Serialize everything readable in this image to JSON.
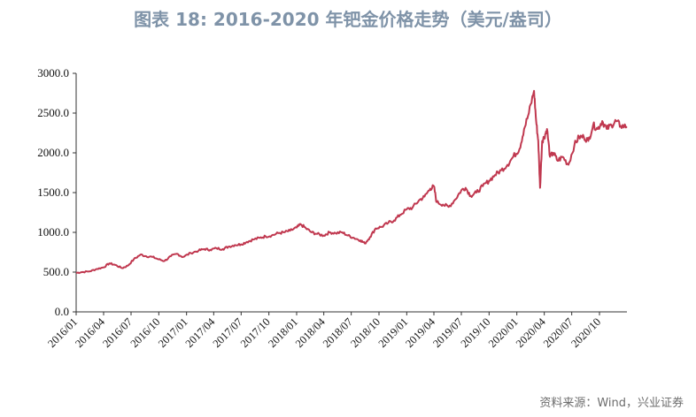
{
  "header": {
    "title": "图表 18: 2016-2020 年钯金价格走势（美元/盎司）"
  },
  "footer": {
    "source": "资料来源：Wind，兴业证券"
  },
  "chart_data": {
    "type": "line",
    "title": "图表 18: 2016-2020 年钯金价格走势（美元/盎司）",
    "xlabel": "",
    "ylabel": "",
    "ylim": [
      0,
      3000
    ],
    "y_ticks": [
      "0.0",
      "500.0",
      "1000.0",
      "1500.0",
      "2000.0",
      "2500.0",
      "3000.0"
    ],
    "x_ticks": [
      "2016/01",
      "2016/04",
      "2016/07",
      "2016/10",
      "2017/01",
      "2017/04",
      "2017/07",
      "2017/10",
      "2018/01",
      "2018/04",
      "2018/07",
      "2018/10",
      "2019/01",
      "2019/04",
      "2019/07",
      "2019/10",
      "2020/01",
      "2020/04",
      "2020/07",
      "2020/10"
    ],
    "grid": false,
    "line_color": "#c0384f",
    "series": [
      {
        "x": [
          "2016-01-01",
          "2016-01-20",
          "2016-02-15",
          "2016-03-10",
          "2016-04-01",
          "2016-04-20",
          "2016-05-10",
          "2016-06-01",
          "2016-06-20",
          "2016-07-10",
          "2016-08-01",
          "2016-08-20",
          "2016-09-10",
          "2016-10-01",
          "2016-10-20",
          "2016-11-10",
          "2016-12-01",
          "2016-12-20",
          "2017-01-15",
          "2017-02-10",
          "2017-03-01",
          "2017-03-20",
          "2017-04-10",
          "2017-05-01",
          "2017-05-20",
          "2017-06-10",
          "2017-07-01",
          "2017-07-20",
          "2017-08-10",
          "2017-09-01",
          "2017-09-20",
          "2017-10-10",
          "2017-11-01",
          "2017-11-20",
          "2017-12-10",
          "2018-01-01",
          "2018-01-15",
          "2018-02-01",
          "2018-02-20",
          "2018-03-10",
          "2018-04-01",
          "2018-04-20",
          "2018-05-10",
          "2018-06-01",
          "2018-06-20",
          "2018-07-10",
          "2018-08-01",
          "2018-08-15",
          "2018-09-01",
          "2018-09-20",
          "2018-10-10",
          "2018-11-01",
          "2018-11-20",
          "2018-12-10",
          "2019-01-01",
          "2019-01-20",
          "2019-02-10",
          "2019-03-01",
          "2019-03-20",
          "2019-04-01",
          "2019-04-10",
          "2019-05-01",
          "2019-05-20",
          "2019-06-10",
          "2019-07-01",
          "2019-07-15",
          "2019-08-01",
          "2019-08-20",
          "2019-09-10",
          "2019-10-01",
          "2019-10-20",
          "2019-11-10",
          "2019-12-01",
          "2019-12-20",
          "2020-01-10",
          "2020-01-25",
          "2020-02-10",
          "2020-02-27",
          "2020-03-05",
          "2020-03-12",
          "2020-03-18",
          "2020-03-25",
          "2020-04-01",
          "2020-04-10",
          "2020-04-20",
          "2020-05-01",
          "2020-05-15",
          "2020-06-01",
          "2020-06-20",
          "2020-07-10",
          "2020-07-25",
          "2020-08-10",
          "2020-08-25",
          "2020-09-10",
          "2020-09-25",
          "2020-10-10",
          "2020-10-25",
          "2020-11-10",
          "2020-11-25",
          "2020-12-10",
          "2020-12-31"
        ],
        "values": [
          490,
          500,
          510,
          540,
          560,
          610,
          590,
          550,
          580,
          660,
          720,
          700,
          690,
          660,
          640,
          700,
          730,
          690,
          740,
          770,
          790,
          780,
          800,
          790,
          820,
          840,
          850,
          880,
          910,
          930,
          950,
          960,
          990,
          1000,
          1020,
          1060,
          1100,
          1050,
          1000,
          980,
          960,
          1000,
          990,
          1000,
          960,
          930,
          900,
          860,
          940,
          1050,
          1070,
          1120,
          1150,
          1220,
          1290,
          1310,
          1400,
          1450,
          1550,
          1580,
          1380,
          1350,
          1320,
          1410,
          1530,
          1560,
          1460,
          1500,
          1580,
          1650,
          1720,
          1780,
          1850,
          1950,
          2050,
          2300,
          2500,
          2780,
          2400,
          2150,
          1560,
          2150,
          2200,
          2300,
          1950,
          2000,
          1900,
          1950,
          1850,
          2100,
          2200,
          2200,
          2150,
          2350,
          2300,
          2400,
          2300,
          2350,
          2400,
          2340,
          2330
        ]
      }
    ]
  }
}
